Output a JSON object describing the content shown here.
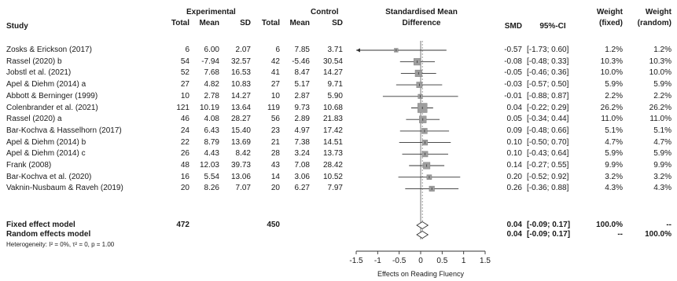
{
  "headers": {
    "study": "Study",
    "experimental": "Experimental",
    "control": "Control",
    "exp_total": "Total",
    "exp_mean": "Mean",
    "exp_sd": "SD",
    "ctl_total": "Total",
    "ctl_mean": "Mean",
    "ctl_sd": "SD",
    "smd_title_1": "Standardised Mean",
    "smd_title_2": "Difference",
    "smd": "SMD",
    "ci": "95%-CI",
    "w_fixed_1": "Weight",
    "w_fixed_2": "(fixed)",
    "w_random_1": "Weight",
    "w_random_2": "(random)"
  },
  "rows": [
    {
      "study": "Zosks & Erickson (2017)",
      "e_total": "6",
      "e_mean": "6.00",
      "e_sd": "2.07",
      "c_total": "6",
      "c_mean": "7.85",
      "c_sd": "3.71",
      "smd_text": "-0.57",
      "ci_text": "[-1.73; 0.60]",
      "wf": "1.2%",
      "wr": "1.2%"
    },
    {
      "study": "Rassel (2020) b",
      "e_total": "54",
      "e_mean": "-7.94",
      "e_sd": "32.57",
      "c_total": "42",
      "c_mean": "-5.46",
      "c_sd": "30.54",
      "smd_text": "-0.08",
      "ci_text": "[-0.48; 0.33]",
      "wf": "10.3%",
      "wr": "10.3%"
    },
    {
      "study": "Jobstl et al. (2021)",
      "e_total": "52",
      "e_mean": "7.68",
      "e_sd": "16.53",
      "c_total": "41",
      "c_mean": "8.47",
      "c_sd": "14.27",
      "smd_text": "-0.05",
      "ci_text": "[-0.46; 0.36]",
      "wf": "10.0%",
      "wr": "10.0%"
    },
    {
      "study": "Apel & Diehm (2014) a",
      "e_total": "27",
      "e_mean": "4.82",
      "e_sd": "10.83",
      "c_total": "27",
      "c_mean": "5.17",
      "c_sd": "9.71",
      "smd_text": "-0.03",
      "ci_text": "[-0.57; 0.50]",
      "wf": "5.9%",
      "wr": "5.9%"
    },
    {
      "study": "Abbott & Berninger (1999)",
      "e_total": "10",
      "e_mean": "2.78",
      "e_sd": "14.27",
      "c_total": "10",
      "c_mean": "2.87",
      "c_sd": "5.90",
      "smd_text": "-0.01",
      "ci_text": "[-0.88; 0.87]",
      "wf": "2.2%",
      "wr": "2.2%"
    },
    {
      "study": "Colenbrander et al. (2021)",
      "e_total": "121",
      "e_mean": "10.19",
      "e_sd": "13.64",
      "c_total": "119",
      "c_mean": "9.73",
      "c_sd": "10.68",
      "smd_text": "0.04",
      "ci_text": "[-0.22; 0.29]",
      "wf": "26.2%",
      "wr": "26.2%"
    },
    {
      "study": "Rassel (2020) a",
      "e_total": "46",
      "e_mean": "4.08",
      "e_sd": "28.27",
      "c_total": "56",
      "c_mean": "2.89",
      "c_sd": "21.83",
      "smd_text": "0.05",
      "ci_text": "[-0.34; 0.44]",
      "wf": "11.0%",
      "wr": "11.0%"
    },
    {
      "study": "Bar-Kochva & Hasselhorn (2017)",
      "e_total": "24",
      "e_mean": "6.43",
      "e_sd": "15.40",
      "c_total": "23",
      "c_mean": "4.97",
      "c_sd": "17.42",
      "smd_text": "0.09",
      "ci_text": "[-0.48; 0.66]",
      "wf": "5.1%",
      "wr": "5.1%"
    },
    {
      "study": "Apel & Diehm (2014) b",
      "e_total": "22",
      "e_mean": "8.79",
      "e_sd": "13.69",
      "c_total": "21",
      "c_mean": "7.38",
      "c_sd": "14.51",
      "smd_text": "0.10",
      "ci_text": "[-0.50; 0.70]",
      "wf": "4.7%",
      "wr": "4.7%"
    },
    {
      "study": "Apel & Diehm (2014) c",
      "e_total": "26",
      "e_mean": "4.43",
      "e_sd": "8.42",
      "c_total": "28",
      "c_mean": "3.24",
      "c_sd": "13.73",
      "smd_text": "0.10",
      "ci_text": "[-0.43; 0.64]",
      "wf": "5.9%",
      "wr": "5.9%"
    },
    {
      "study": "Frank (2008)",
      "e_total": "48",
      "e_mean": "12.03",
      "e_sd": "39.73",
      "c_total": "43",
      "c_mean": "7.08",
      "c_sd": "28.42",
      "smd_text": "0.14",
      "ci_text": "[-0.27; 0.55]",
      "wf": "9.9%",
      "wr": "9.9%"
    },
    {
      "study": "Bar-Kochva et al. (2020)",
      "e_total": "16",
      "e_mean": "5.54",
      "e_sd": "13.06",
      "c_total": "14",
      "c_mean": "3.06",
      "c_sd": "10.52",
      "smd_text": "0.20",
      "ci_text": "[-0.52; 0.92]",
      "wf": "3.2%",
      "wr": "3.2%"
    },
    {
      "study": "Vaknin-Nusbaum & Raveh (2019)",
      "e_total": "20",
      "e_mean": "8.26",
      "e_sd": "7.07",
      "c_total": "20",
      "c_mean": "6.27",
      "c_sd": "7.97",
      "smd_text": "0.26",
      "ci_text": "[-0.36; 0.88]",
      "wf": "4.3%",
      "wr": "4.3%"
    }
  ],
  "summary": {
    "fixed": {
      "label": "Fixed effect model",
      "e_total": "472",
      "c_total": "450",
      "smd_text": "0.04",
      "ci_text": "[-0.09; 0.17]",
      "wf": "100.0%",
      "wr": "--"
    },
    "random": {
      "label": "Random effects model",
      "smd_text": "0.04",
      "ci_text": "[-0.09; 0.17]",
      "wf": "--",
      "wr": "100.0%"
    },
    "heterogeneity": "Heterogeneity: I² = 0%, τ² = 0, p = 1.00"
  },
  "chart_data": {
    "type": "scatter",
    "subtype": "forest",
    "xlabel": "Effects on Reading Fluency",
    "xlim": [
      -1.5,
      1.5
    ],
    "xticks": [
      "-1.5",
      "-1",
      "-0.5",
      "0",
      "0.5",
      "1",
      "1.5"
    ],
    "xtick_values": [
      -1.5,
      -1,
      -0.5,
      0,
      0.5,
      1,
      1.5
    ],
    "reference_line": 0,
    "studies": [
      {
        "smd": -0.57,
        "lo": -1.73,
        "hi": 0.6,
        "weight": 1.2,
        "arrow_left": true
      },
      {
        "smd": -0.08,
        "lo": -0.48,
        "hi": 0.33,
        "weight": 10.3
      },
      {
        "smd": -0.05,
        "lo": -0.46,
        "hi": 0.36,
        "weight": 10.0
      },
      {
        "smd": -0.03,
        "lo": -0.57,
        "hi": 0.5,
        "weight": 5.9
      },
      {
        "smd": -0.01,
        "lo": -0.88,
        "hi": 0.87,
        "weight": 2.2
      },
      {
        "smd": 0.04,
        "lo": -0.22,
        "hi": 0.29,
        "weight": 26.2
      },
      {
        "smd": 0.05,
        "lo": -0.34,
        "hi": 0.44,
        "weight": 11.0
      },
      {
        "smd": 0.09,
        "lo": -0.48,
        "hi": 0.66,
        "weight": 5.1
      },
      {
        "smd": 0.1,
        "lo": -0.5,
        "hi": 0.7,
        "weight": 4.7
      },
      {
        "smd": 0.1,
        "lo": -0.43,
        "hi": 0.64,
        "weight": 5.9
      },
      {
        "smd": 0.14,
        "lo": -0.27,
        "hi": 0.55,
        "weight": 9.9
      },
      {
        "smd": 0.2,
        "lo": -0.52,
        "hi": 0.92,
        "weight": 3.2
      },
      {
        "smd": 0.26,
        "lo": -0.36,
        "hi": 0.88,
        "weight": 4.3
      }
    ],
    "pooled": [
      {
        "model": "fixed",
        "smd": 0.04,
        "lo": -0.09,
        "hi": 0.17
      },
      {
        "model": "random",
        "smd": 0.04,
        "lo": -0.09,
        "hi": 0.17
      }
    ],
    "colors": {
      "line": "#333333",
      "square": "#9e9e9e",
      "diamond": "#ffffff"
    }
  }
}
